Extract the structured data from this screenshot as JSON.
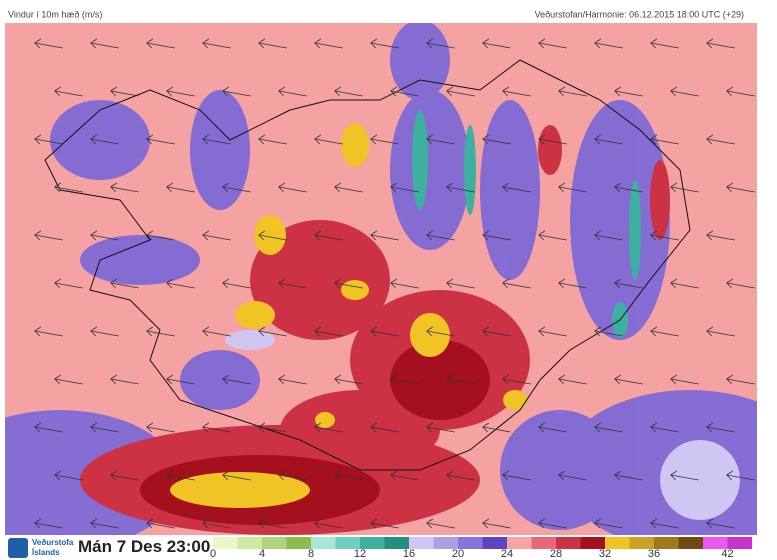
{
  "header": {
    "title": "Vindur í 10m hæð (m/s)",
    "source": "Veðurstofan/Harmonie: 06.12.2015 18:00 UTC (+29)"
  },
  "footer": {
    "logo": [
      "Veðurstofa",
      "Íslands"
    ],
    "time": "Mán 7 Des 23:00"
  },
  "legend": {
    "labels": [
      0,
      4,
      8,
      12,
      16,
      20,
      24,
      28,
      32,
      36,
      42
    ],
    "colors": [
      "#eaf6cc",
      "#cfe9a4",
      "#b0d47e",
      "#8cbc4e",
      "#a8e6d8",
      "#6ccfc0",
      "#3eb0a0",
      "#23907e",
      "#cfc6f4",
      "#ad9eea",
      "#8674dc",
      "#5c44c4",
      "#f8a4a4",
      "#e8687a",
      "#cc3244",
      "#a4101e",
      "#f0c424",
      "#cca224",
      "#a07a1a",
      "#704a12",
      "#f056f0",
      "#c832cc"
    ]
  }
}
